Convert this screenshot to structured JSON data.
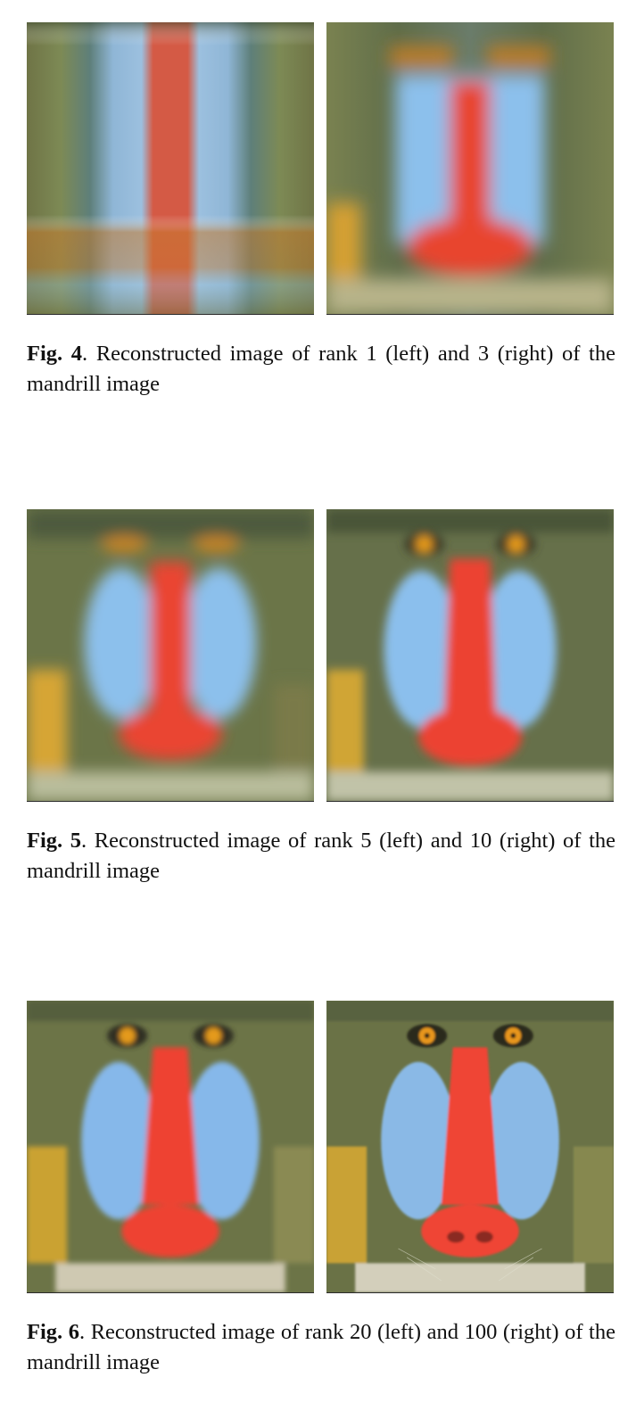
{
  "figures": [
    {
      "label": "Fig. 4",
      "caption": ". Reconstructed image of rank 1 (left) and 3 (right) of the mandrill image",
      "panels": [
        {
          "rank": 1,
          "subject": "mandrill"
        },
        {
          "rank": 3,
          "subject": "mandrill"
        }
      ]
    },
    {
      "label": "Fig. 5",
      "caption": ". Reconstructed image of rank 5 (left) and 10 (right) of the mandrill image",
      "panels": [
        {
          "rank": 5,
          "subject": "mandrill"
        },
        {
          "rank": 10,
          "subject": "mandrill"
        }
      ]
    },
    {
      "label": "Fig. 6",
      "caption": ". Reconstructed image of rank 20 (left) and 100 (right) of the mandrill image",
      "panels": [
        {
          "rank": 20,
          "subject": "mandrill"
        },
        {
          "rank": 100,
          "subject": "mandrill"
        }
      ]
    }
  ],
  "colors": {
    "fur_olive": "#6f7a45",
    "fur_gold": "#c9a23a",
    "cheek_blue": "#86b8e4",
    "nose_red": "#e5432f",
    "eye_orange": "#e49a1d",
    "dark": "#2d3328"
  }
}
